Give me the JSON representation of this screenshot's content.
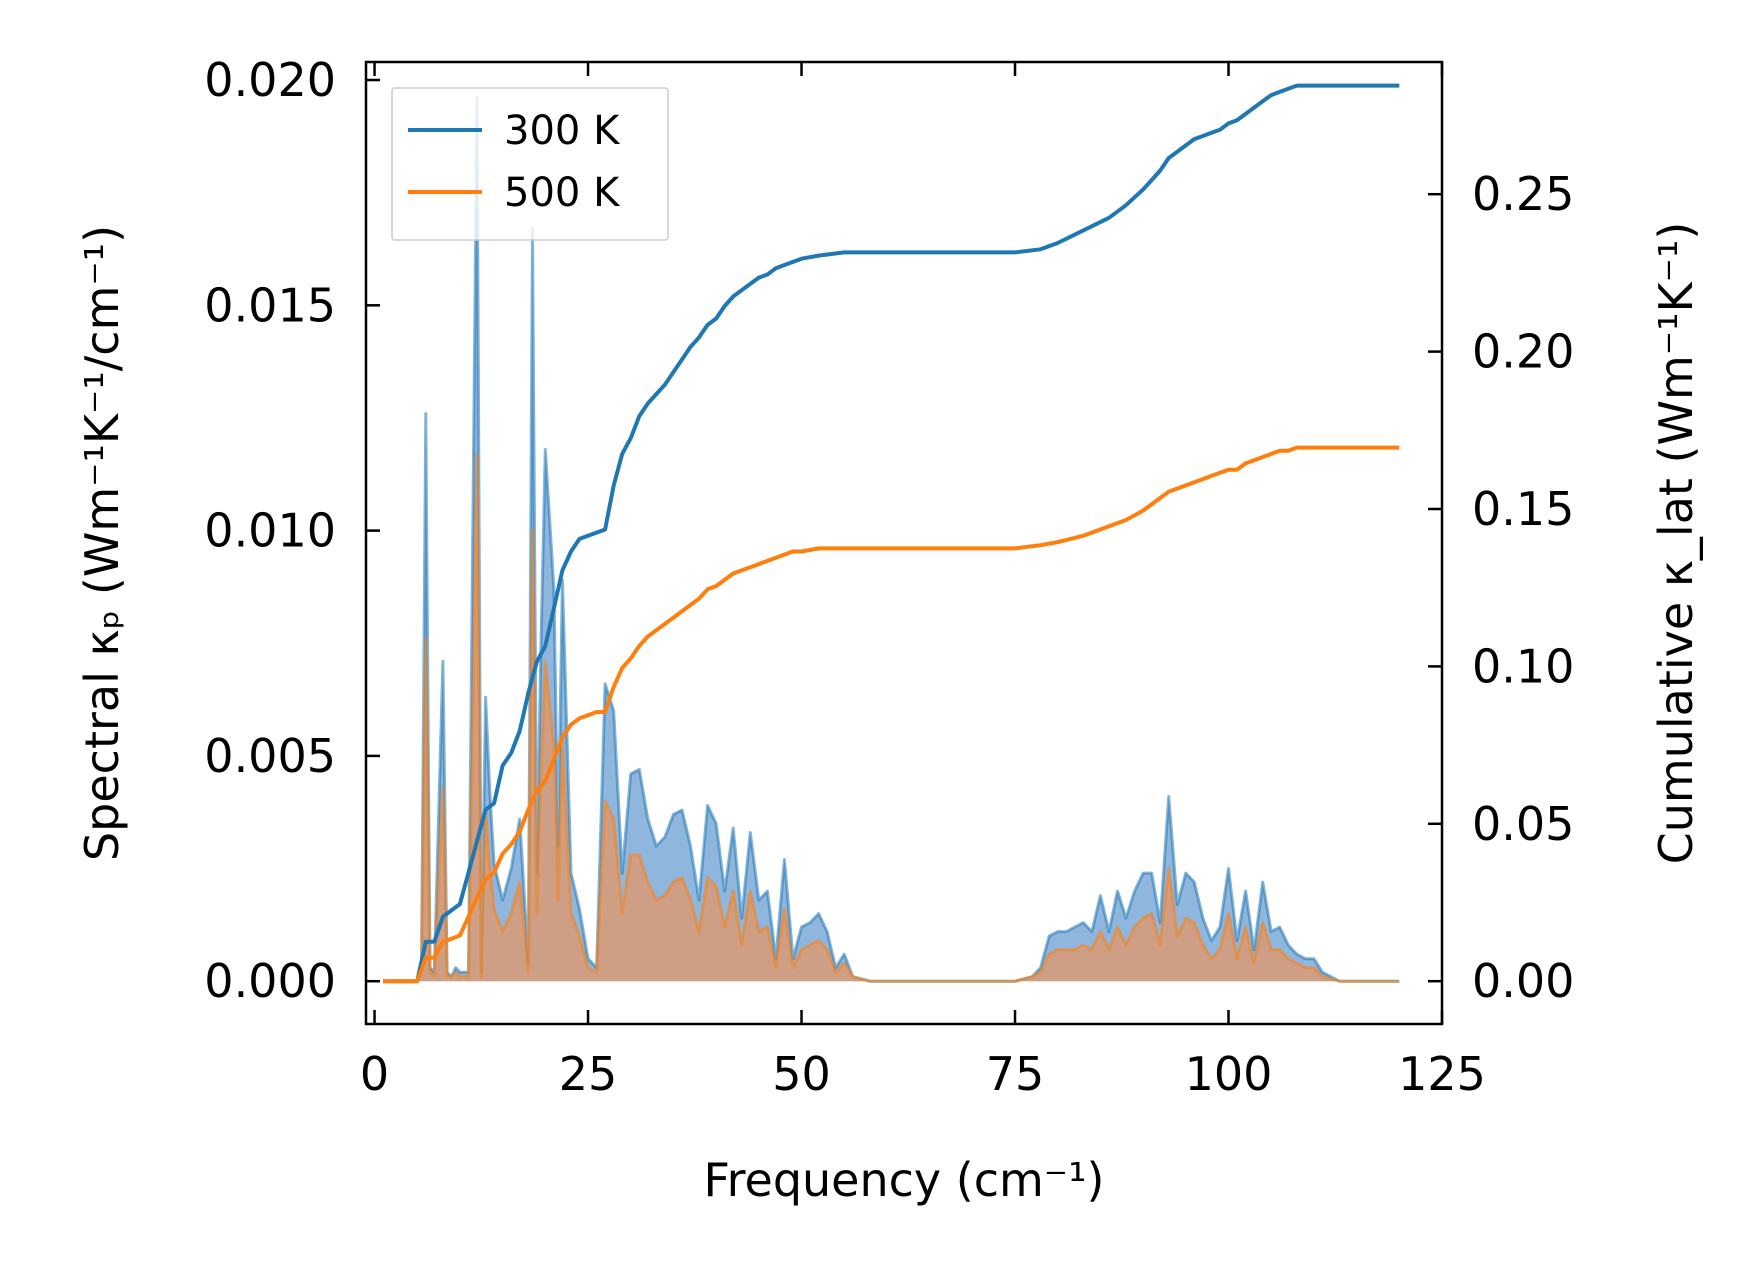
{
  "chart_data": {
    "type": "line",
    "title": "",
    "xlabel": "Frequency (cm⁻¹)",
    "ylabel_left": "Spectral κₚ (Wm⁻¹K⁻¹/cm⁻¹)",
    "ylabel_right": "Cumulative κ_lat (Wm⁻¹K⁻¹)",
    "xlim": [
      -1,
      125
    ],
    "ylim_left": [
      -0.00095,
      0.0204
    ],
    "ylim_right": [
      -0.0136,
      0.292
    ],
    "xticks": [
      0,
      25,
      50,
      75,
      100,
      125
    ],
    "xtick_labels": [
      "0",
      "25",
      "50",
      "75",
      "100",
      "125"
    ],
    "yticks_left": [
      0,
      0.005,
      0.01,
      0.015,
      0.02
    ],
    "ytick_labels_left": [
      "0.000",
      "0.005",
      "0.010",
      "0.015",
      "0.020"
    ],
    "yticks_right": [
      0,
      0.05,
      0.1,
      0.15,
      0.2,
      0.25
    ],
    "ytick_labels_right": [
      "0.00",
      "0.05",
      "0.10",
      "0.15",
      "0.20",
      "0.25"
    ],
    "legend": {
      "placement": "top-left",
      "entries": [
        {
          "label": "300 K",
          "color": "#1f77b4"
        },
        {
          "label": "500 K",
          "color": "#ff7f0e"
        }
      ]
    },
    "series": [
      {
        "name": "300 K",
        "color": "#1f77b4",
        "fill_color": "#6a9ed0",
        "spectral": {
          "x": [
            1,
            5,
            5.5,
            6,
            6.5,
            7,
            8,
            8.5,
            9,
            9.5,
            10,
            11,
            12,
            12.5,
            13,
            13.5,
            14,
            15,
            16,
            17,
            18,
            18.5,
            19,
            19.5,
            20,
            21,
            21.5,
            22,
            23,
            24,
            25,
            26,
            27,
            28,
            29,
            30,
            31,
            32,
            33,
            34,
            35,
            36,
            37,
            38,
            39,
            40,
            41,
            42,
            43,
            44,
            45,
            46,
            47,
            48,
            49,
            50,
            51,
            52,
            53,
            54,
            55,
            56,
            58,
            60,
            65,
            70,
            75,
            77,
            78,
            79,
            80,
            81,
            82,
            83,
            84,
            85,
            86,
            87,
            88,
            89,
            90,
            91,
            92,
            93,
            94,
            95,
            96,
            97,
            98,
            99,
            100,
            101,
            102,
            103,
            104,
            105,
            106,
            107,
            108,
            109,
            110,
            111,
            113,
            115,
            120
          ],
          "y": [
            0,
            0,
            0.0003,
            0.0126,
            0.0003,
            0.0002,
            0.0071,
            0.0002,
            0.0001,
            0.0003,
            0.0002,
            0.0002,
            0.0196,
            0.0002,
            0.0063,
            0.0042,
            0.0026,
            0.0018,
            0.0025,
            0.0036,
            0.0004,
            0.0167,
            0.0024,
            0.0076,
            0.0118,
            0.0087,
            0.003,
            0.0089,
            0.0024,
            0.0016,
            0.0005,
            0.0003,
            0.0066,
            0.006,
            0.0024,
            0.0046,
            0.0047,
            0.0036,
            0.003,
            0.0032,
            0.0037,
            0.0038,
            0.003,
            0.0018,
            0.0039,
            0.0035,
            0.002,
            0.0034,
            0.0014,
            0.0033,
            0.0018,
            0.002,
            0.0005,
            0.0027,
            0.0005,
            0.0012,
            0.0013,
            0.0015,
            0.0011,
            0.0003,
            0.0006,
            0.0001,
            0,
            0,
            0,
            0,
            0,
            0.0001,
            0.0003,
            0.001,
            0.0011,
            0.0011,
            0.0012,
            0.0013,
            0.0011,
            0.0019,
            0.0011,
            0.002,
            0.0014,
            0.002,
            0.0024,
            0.0024,
            0.0013,
            0.0041,
            0.0017,
            0.0024,
            0.0022,
            0.0014,
            0.0009,
            0.0012,
            0.0025,
            0.0009,
            0.002,
            0.0007,
            0.0022,
            0.0011,
            0.0012,
            0.0008,
            0.0006,
            0.0005,
            0.0005,
            0.0002,
            0,
            0,
            0
          ]
        },
        "cumulative": {
          "x": [
            1,
            5,
            6,
            7,
            8,
            9,
            10,
            11,
            12,
            13,
            14,
            15,
            16,
            17,
            18,
            19,
            20,
            21,
            22,
            23,
            24,
            25,
            26,
            27,
            28,
            29,
            30,
            31,
            32,
            33,
            34,
            35,
            36,
            37,
            38,
            39,
            40,
            41,
            42,
            43,
            44,
            45,
            46,
            47,
            48,
            49,
            50,
            52,
            55,
            60,
            70,
            75,
            78,
            80,
            83,
            86,
            88,
            90,
            91,
            92,
            93,
            94,
            95,
            96,
            97,
            98,
            99,
            100,
            101,
            102,
            103,
            104,
            105,
            106,
            107,
            108,
            110,
            115,
            120
          ],
          "y": [
            0,
            0,
            0.0125,
            0.0125,
            0.0205,
            0.0225,
            0.0245,
            0.0345,
            0.0445,
            0.0545,
            0.0565,
            0.0685,
            0.0725,
            0.0795,
            0.0915,
            0.1015,
            0.1065,
            0.1185,
            0.1305,
            0.1365,
            0.1405,
            0.1415,
            0.1425,
            0.1435,
            0.1575,
            0.1675,
            0.1725,
            0.1795,
            0.1835,
            0.1865,
            0.1895,
            0.1935,
            0.1975,
            0.2015,
            0.2045,
            0.2085,
            0.2105,
            0.2145,
            0.2175,
            0.2195,
            0.2215,
            0.2235,
            0.2245,
            0.2265,
            0.2275,
            0.2285,
            0.2295,
            0.2305,
            0.2315,
            0.2315,
            0.2315,
            0.2315,
            0.2325,
            0.2345,
            0.2385,
            0.2425,
            0.2465,
            0.2515,
            0.2545,
            0.2575,
            0.2615,
            0.2635,
            0.2655,
            0.2675,
            0.2685,
            0.2695,
            0.2705,
            0.2725,
            0.2735,
            0.2755,
            0.2775,
            0.2795,
            0.2815,
            0.2825,
            0.2835,
            0.2845,
            0.2845,
            0.2845,
            0.2845
          ]
        }
      },
      {
        "name": "500 K",
        "color": "#ff7f0e",
        "fill_color": "#e8955e",
        "spectral": {
          "x": [
            1,
            5,
            5.5,
            6,
            6.5,
            7,
            8,
            8.5,
            9,
            9.5,
            10,
            11,
            12,
            12.5,
            13,
            13.5,
            14,
            15,
            16,
            17,
            18,
            18.5,
            19,
            19.5,
            20,
            21,
            21.5,
            22,
            23,
            24,
            25,
            26,
            27,
            28,
            29,
            30,
            31,
            32,
            33,
            34,
            35,
            36,
            37,
            38,
            39,
            40,
            41,
            42,
            43,
            44,
            45,
            46,
            47,
            48,
            49,
            50,
            51,
            52,
            53,
            54,
            55,
            56,
            58,
            60,
            65,
            70,
            75,
            77,
            78,
            79,
            80,
            81,
            82,
            83,
            84,
            85,
            86,
            87,
            88,
            89,
            90,
            91,
            92,
            93,
            94,
            95,
            96,
            97,
            98,
            99,
            100,
            101,
            102,
            103,
            104,
            105,
            106,
            107,
            108,
            109,
            110,
            111,
            113,
            115,
            120
          ],
          "y": [
            0,
            0,
            0.0002,
            0.0076,
            0.0002,
            0.0001,
            0.0043,
            0.0001,
            0.0001,
            0.0002,
            0.0001,
            0.0001,
            0.0117,
            0.0001,
            0.0038,
            0.0025,
            0.0016,
            0.0011,
            0.0015,
            0.0022,
            0.0002,
            0.01,
            0.0015,
            0.0046,
            0.0071,
            0.0052,
            0.0018,
            0.0053,
            0.0015,
            0.001,
            0.0003,
            0.0002,
            0.004,
            0.0036,
            0.0015,
            0.0028,
            0.0028,
            0.0022,
            0.0018,
            0.0019,
            0.0022,
            0.0023,
            0.0018,
            0.0011,
            0.0023,
            0.0021,
            0.0012,
            0.002,
            0.0008,
            0.002,
            0.0011,
            0.0012,
            0.0003,
            0.0016,
            0.0003,
            0.0007,
            0.0008,
            0.0009,
            0.0007,
            0.0002,
            0.0004,
            0.0001,
            0,
            0,
            0,
            0,
            0,
            0.0001,
            0.0002,
            0.0006,
            0.0007,
            0.0007,
            0.0007,
            0.0008,
            0.0007,
            0.0011,
            0.0007,
            0.0012,
            0.0008,
            0.0012,
            0.0014,
            0.0015,
            0.0008,
            0.0025,
            0.001,
            0.0014,
            0.0013,
            0.0008,
            0.0005,
            0.0007,
            0.0015,
            0.0005,
            0.0012,
            0.0004,
            0.0013,
            0.0007,
            0.0007,
            0.0005,
            0.0004,
            0.0003,
            0.0003,
            0.0001,
            0,
            0,
            0
          ]
        },
        "cumulative": {
          "x": [
            1,
            5,
            6,
            7,
            8,
            9,
            10,
            11,
            12,
            13,
            14,
            15,
            16,
            17,
            18,
            19,
            20,
            21,
            22,
            23,
            24,
            25,
            26,
            27,
            28,
            29,
            30,
            31,
            32,
            33,
            34,
            35,
            36,
            37,
            38,
            39,
            40,
            41,
            42,
            43,
            44,
            45,
            46,
            47,
            48,
            49,
            50,
            52,
            55,
            60,
            70,
            75,
            78,
            80,
            83,
            86,
            88,
            90,
            91,
            92,
            93,
            94,
            95,
            96,
            97,
            98,
            99,
            100,
            101,
            102,
            103,
            104,
            105,
            106,
            107,
            108,
            110,
            115,
            120
          ],
          "y": [
            0,
            0,
            0.0075,
            0.0075,
            0.0125,
            0.0135,
            0.0145,
            0.0205,
            0.0265,
            0.0325,
            0.0345,
            0.0405,
            0.0435,
            0.0475,
            0.0545,
            0.0605,
            0.0635,
            0.0705,
            0.0775,
            0.0815,
            0.0835,
            0.0845,
            0.0855,
            0.0855,
            0.0935,
            0.0995,
            0.1025,
            0.1065,
            0.1095,
            0.1115,
            0.1135,
            0.1155,
            0.1175,
            0.1195,
            0.1215,
            0.1245,
            0.1255,
            0.1275,
            0.1295,
            0.1305,
            0.1315,
            0.1325,
            0.1335,
            0.1345,
            0.1355,
            0.1365,
            0.1365,
            0.1375,
            0.1375,
            0.1375,
            0.1375,
            0.1375,
            0.1385,
            0.1395,
            0.1415,
            0.1445,
            0.1465,
            0.1495,
            0.1515,
            0.1535,
            0.1555,
            0.1565,
            0.1575,
            0.1585,
            0.1595,
            0.1605,
            0.1615,
            0.1625,
            0.1625,
            0.1645,
            0.1655,
            0.1665,
            0.1675,
            0.1685,
            0.1685,
            0.1695,
            0.1695,
            0.1695,
            0.1695
          ]
        }
      }
    ]
  }
}
